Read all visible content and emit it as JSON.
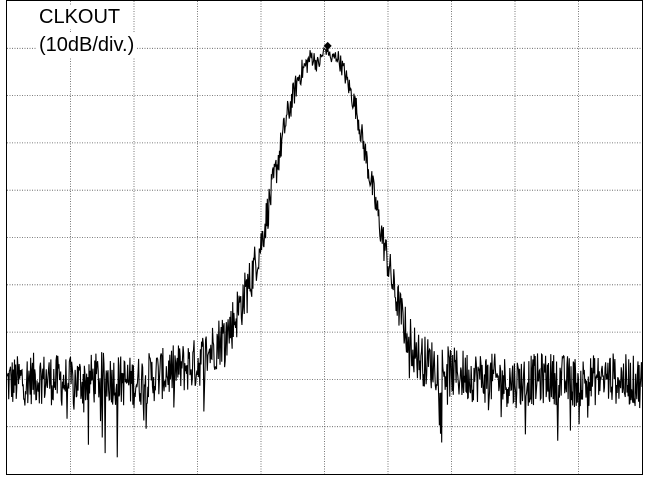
{
  "chart_data": {
    "type": "line",
    "title": "CLKOUT",
    "subtitle": "(10dB/div.)",
    "xlabel": "",
    "ylabel": "",
    "grid": true,
    "x_divisions": 10,
    "y_divisions": 10,
    "xlim": [
      0,
      10
    ],
    "ylim": [
      0,
      10
    ],
    "series": [
      {
        "peak_x": 5.05,
        "peak_y": 9.05,
        "noise_floor_y": 2.1,
        "noise_amplitude": 0.55,
        "envelope_half_width": 1.0,
        "x": [
          0.0,
          0.5,
          1.0,
          1.5,
          2.0,
          2.5,
          3.0,
          3.5,
          3.8,
          4.0,
          4.2,
          4.4,
          4.6,
          4.8,
          4.9,
          5.0,
          5.05,
          5.1,
          5.2,
          5.3,
          5.5,
          5.7,
          5.9,
          6.1,
          6.3,
          6.5,
          7.0,
          7.5,
          8.0,
          8.5,
          9.0,
          9.5,
          10.0
        ],
        "y": [
          2.1,
          2.2,
          2.1,
          2.2,
          2.1,
          2.3,
          2.5,
          3.2,
          4.1,
          5.0,
          6.3,
          7.6,
          8.5,
          8.9,
          8.7,
          9.0,
          9.05,
          8.8,
          8.9,
          8.6,
          7.8,
          6.5,
          5.2,
          4.0,
          3.1,
          2.6,
          2.3,
          2.2,
          2.1,
          2.2,
          2.1,
          2.2,
          2.1
        ]
      }
    ]
  }
}
